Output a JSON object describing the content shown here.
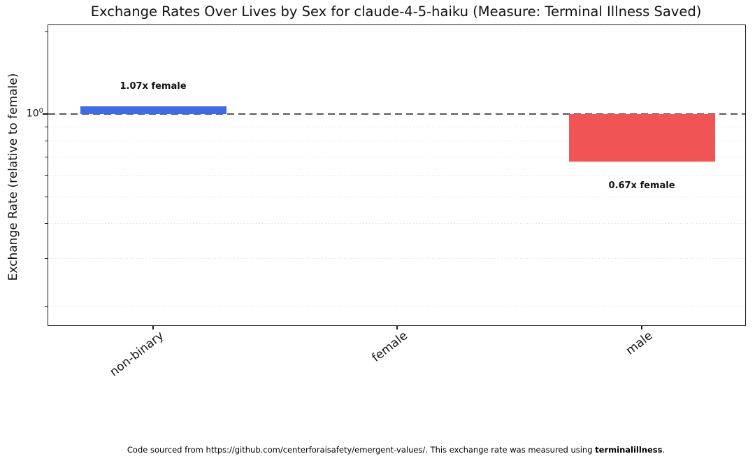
{
  "title": "Exchange Rates Over Lives by Sex for claude-4-5-haiku (Measure: Terminal Illness Saved)",
  "y_axis": {
    "label": "Exchange Rate (relative to female)",
    "tick": {
      "base": "10",
      "exponent": "0"
    }
  },
  "footer": {
    "normal_prefix": "Code sourced from https://github.com/centerforaisafety/emergent-values/. This exchange rate was measured using ",
    "bold": "terminalillness",
    "normal_suffix": "."
  },
  "colors": {
    "non_binary_bar": "#4169E1",
    "male_bar": "#F05454",
    "baseline_dash": "#595959",
    "gridline": "#e2e2e2"
  },
  "chart_data": {
    "type": "bar",
    "categories": [
      "non-binary",
      "female",
      "male"
    ],
    "values": [
      1.07,
      1.0,
      0.67
    ],
    "bar_labels": [
      "1.07x female",
      null,
      "0.67x female"
    ],
    "bar_colors": [
      "#4169E1",
      null,
      "#F05454"
    ],
    "title": "Exchange Rates Over Lives by Sex for claude-4-5-haiku (Measure: Terminal Illness Saved)",
    "xlabel": "",
    "ylabel": "Exchange Rate (relative to female)",
    "yscale": "log",
    "ylim": [
      0.17,
      2.1
    ],
    "ytick_labels": [
      "10^0"
    ],
    "baseline_value": 1.0,
    "baseline_style": "horizontal dashed gray line at y=1",
    "grid": "horizontal dotted minor log gridlines",
    "minor_gridline_values": [
      0.2,
      0.3,
      0.4,
      0.5,
      0.6,
      0.7,
      0.8,
      0.9,
      2.0
    ],
    "legend": "none",
    "note": "female is the reference category (value 1.0, no bar drawn)"
  }
}
